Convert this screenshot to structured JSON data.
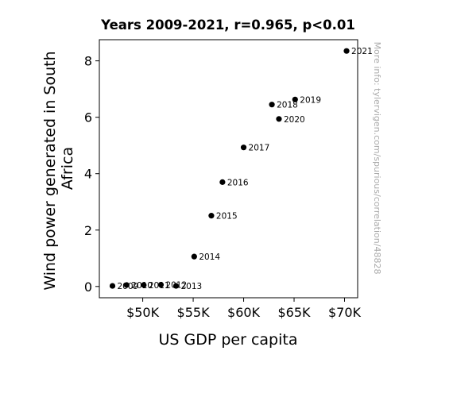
{
  "chart_data": {
    "type": "scatter",
    "title": "Years 2009-2021, r=0.965, p<0.01",
    "xlabel": "US GDP per capita",
    "ylabel_lines": [
      "Wind power generated in South",
      "Africa"
    ],
    "watermark": "More info: tylervigen.com/spurious/correlation/48828",
    "xlim": [
      45700,
      71300
    ],
    "ylim": [
      -0.4,
      8.75
    ],
    "x_ticks": [
      {
        "value": 50000,
        "label": "$50K"
      },
      {
        "value": 55000,
        "label": "$55K"
      },
      {
        "value": 60000,
        "label": "$60K"
      },
      {
        "value": 65000,
        "label": "$65K"
      },
      {
        "value": 70000,
        "label": "$70K"
      }
    ],
    "y_ticks": [
      {
        "value": 0,
        "label": "0"
      },
      {
        "value": 2,
        "label": "2"
      },
      {
        "value": 4,
        "label": "4"
      },
      {
        "value": 6,
        "label": "6"
      },
      {
        "value": 8,
        "label": "8"
      }
    ],
    "points": [
      {
        "label": "2009",
        "x": 47000,
        "y": 0.02
      },
      {
        "label": "2010",
        "x": 48400,
        "y": 0.05
      },
      {
        "label": "2011",
        "x": 50100,
        "y": 0.05
      },
      {
        "label": "2012",
        "x": 51800,
        "y": 0.06
      },
      {
        "label": "2013",
        "x": 53300,
        "y": 0.02
      },
      {
        "label": "2014",
        "x": 55100,
        "y": 1.06
      },
      {
        "label": "2015",
        "x": 56800,
        "y": 2.51
      },
      {
        "label": "2016",
        "x": 57900,
        "y": 3.7
      },
      {
        "label": "2017",
        "x": 60000,
        "y": 4.93
      },
      {
        "label": "2018",
        "x": 62800,
        "y": 6.45
      },
      {
        "label": "2019",
        "x": 65100,
        "y": 6.63
      },
      {
        "label": "2020",
        "x": 63500,
        "y": 5.94
      },
      {
        "label": "2021",
        "x": 70200,
        "y": 8.35
      }
    ],
    "marker_color": "#000000",
    "grid": false,
    "legend": "none"
  }
}
